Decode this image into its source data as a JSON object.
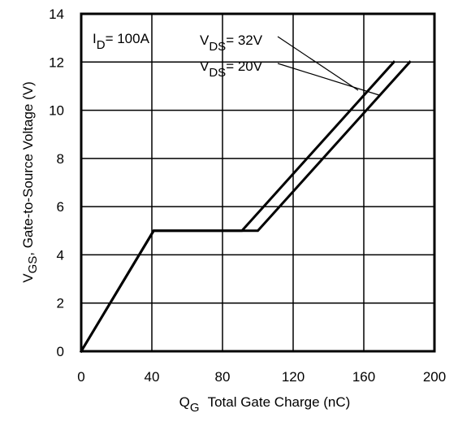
{
  "chart_data": {
    "type": "line",
    "xlabel": {
      "symbol": "Q",
      "subscript": "G",
      "text": "Total Gate Charge (nC)"
    },
    "ylabel": {
      "symbol": "V",
      "subscript": "GS",
      "text": ", Gate-to-Source Voltage (V)"
    },
    "xlim": [
      0,
      200
    ],
    "ylim": [
      0,
      14
    ],
    "xticks": [
      0,
      40,
      80,
      120,
      160,
      200
    ],
    "yticks": [
      0,
      2,
      4,
      6,
      8,
      10,
      12,
      14
    ],
    "grid": true,
    "annotations": [
      {
        "symbol": "I",
        "subscript": "D",
        "text": "= 100A"
      },
      {
        "symbol": "V",
        "subscript": "DS",
        "text": "= 32V"
      },
      {
        "symbol": "V",
        "subscript": "DS",
        "text": "= 20V"
      }
    ],
    "series": [
      {
        "x": [
          0,
          41,
          100,
          186
        ],
        "y": [
          0,
          5,
          5,
          12
        ]
      },
      {
        "x": [
          0,
          41,
          91,
          177
        ],
        "y": [
          0,
          5,
          5,
          12
        ]
      }
    ]
  },
  "colors": {
    "line": "#000000",
    "grid": "#000000",
    "background": "#ffffff"
  }
}
